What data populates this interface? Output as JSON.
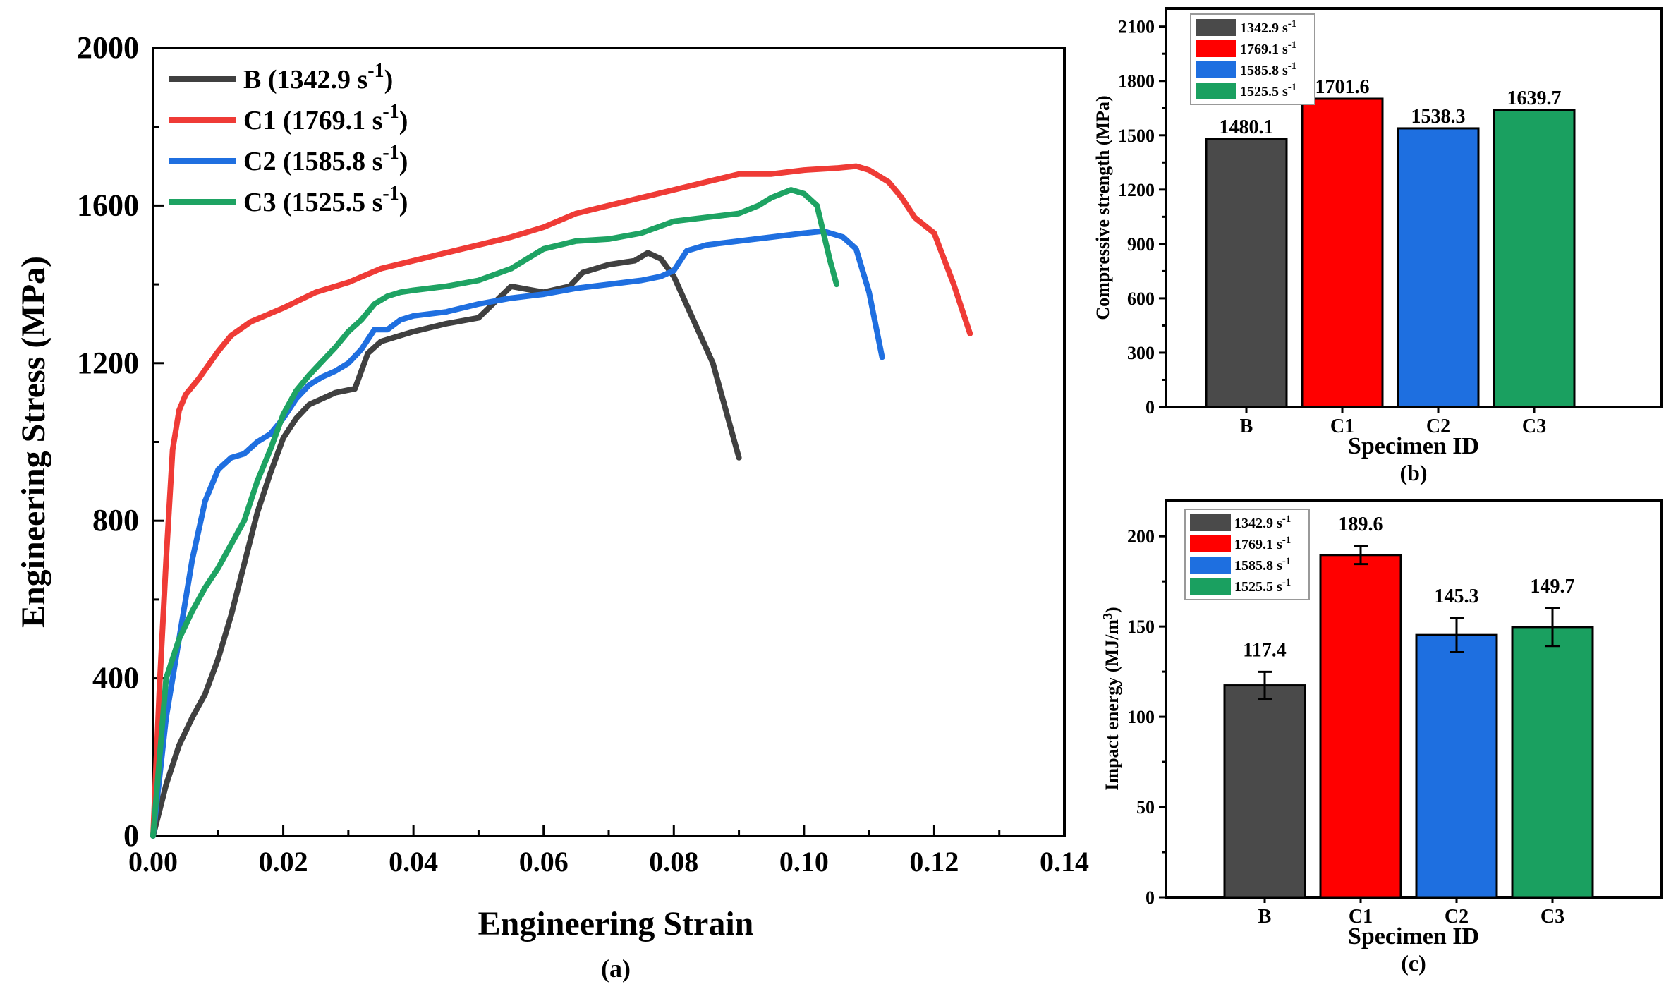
{
  "chart_data": [
    {
      "id": "a",
      "type": "line",
      "panel_label": "(a)",
      "xlabel": "Engineering Strain",
      "ylabel": "Engineering Stress (MPa)",
      "xlim": [
        0,
        0.14
      ],
      "ylim": [
        0,
        2000
      ],
      "xticks": [
        0,
        0.02,
        0.04,
        0.06,
        0.08,
        0.1,
        0.12,
        0.14
      ],
      "xtick_labels": [
        "0.00",
        "0.02",
        "0.04",
        "0.06",
        "0.08",
        "0.10",
        "0.12",
        "0.14"
      ],
      "yticks": [
        0,
        400,
        800,
        1200,
        1600,
        2000
      ],
      "ytick_labels": [
        "0",
        "400",
        "800",
        "1200",
        "1600",
        "2000"
      ],
      "legend_position": "top-left",
      "series": [
        {
          "name": "B",
          "rate": "1342.9",
          "unit": "s",
          "exponent": "-1",
          "color": "#404040",
          "points": [
            [
              0,
              0
            ],
            [
              0.002,
              130
            ],
            [
              0.004,
              230
            ],
            [
              0.006,
              300
            ],
            [
              0.008,
              360
            ],
            [
              0.01,
              450
            ],
            [
              0.012,
              560
            ],
            [
              0.014,
              690
            ],
            [
              0.016,
              820
            ],
            [
              0.018,
              920
            ],
            [
              0.02,
              1010
            ],
            [
              0.022,
              1060
            ],
            [
              0.024,
              1095
            ],
            [
              0.026,
              1110
            ],
            [
              0.028,
              1125
            ],
            [
              0.031,
              1135
            ],
            [
              0.033,
              1225
            ],
            [
              0.035,
              1255
            ],
            [
              0.04,
              1280
            ],
            [
              0.045,
              1300
            ],
            [
              0.05,
              1315
            ],
            [
              0.055,
              1395
            ],
            [
              0.06,
              1380
            ],
            [
              0.064,
              1395
            ],
            [
              0.066,
              1430
            ],
            [
              0.07,
              1450
            ],
            [
              0.074,
              1460
            ],
            [
              0.076,
              1480
            ],
            [
              0.078,
              1465
            ],
            [
              0.08,
              1420
            ],
            [
              0.083,
              1310
            ],
            [
              0.086,
              1200
            ],
            [
              0.088,
              1080
            ],
            [
              0.09,
              960
            ]
          ]
        },
        {
          "name": "C1",
          "rate": "1769.1",
          "unit": "s",
          "exponent": "-1",
          "color": "#ef3b36",
          "points": [
            [
              0,
              0
            ],
            [
              0.001,
              380
            ],
            [
              0.002,
              700
            ],
            [
              0.003,
              980
            ],
            [
              0.004,
              1080
            ],
            [
              0.005,
              1120
            ],
            [
              0.007,
              1160
            ],
            [
              0.01,
              1230
            ],
            [
              0.012,
              1270
            ],
            [
              0.015,
              1305
            ],
            [
              0.02,
              1340
            ],
            [
              0.025,
              1380
            ],
            [
              0.03,
              1405
            ],
            [
              0.035,
              1440
            ],
            [
              0.04,
              1460
            ],
            [
              0.045,
              1480
            ],
            [
              0.05,
              1500
            ],
            [
              0.055,
              1520
            ],
            [
              0.06,
              1545
            ],
            [
              0.065,
              1580
            ],
            [
              0.07,
              1600
            ],
            [
              0.075,
              1620
            ],
            [
              0.08,
              1640
            ],
            [
              0.085,
              1660
            ],
            [
              0.09,
              1680
            ],
            [
              0.095,
              1680
            ],
            [
              0.1,
              1690
            ],
            [
              0.105,
              1695
            ],
            [
              0.108,
              1700
            ],
            [
              0.11,
              1690
            ],
            [
              0.113,
              1660
            ],
            [
              0.115,
              1620
            ],
            [
              0.117,
              1570
            ],
            [
              0.12,
              1530
            ],
            [
              0.123,
              1400
            ],
            [
              0.1255,
              1275
            ]
          ]
        },
        {
          "name": "C2",
          "rate": "1585.8",
          "unit": "s",
          "exponent": "-1",
          "color": "#1f6fe0",
          "points": [
            [
              0,
              0
            ],
            [
              0.002,
              300
            ],
            [
              0.004,
              500
            ],
            [
              0.006,
              700
            ],
            [
              0.008,
              850
            ],
            [
              0.01,
              930
            ],
            [
              0.012,
              960
            ],
            [
              0.014,
              970
            ],
            [
              0.016,
              1000
            ],
            [
              0.018,
              1020
            ],
            [
              0.02,
              1060
            ],
            [
              0.022,
              1110
            ],
            [
              0.024,
              1145
            ],
            [
              0.026,
              1165
            ],
            [
              0.028,
              1180
            ],
            [
              0.03,
              1200
            ],
            [
              0.032,
              1235
            ],
            [
              0.034,
              1285
            ],
            [
              0.036,
              1285
            ],
            [
              0.038,
              1310
            ],
            [
              0.04,
              1320
            ],
            [
              0.045,
              1330
            ],
            [
              0.05,
              1350
            ],
            [
              0.055,
              1365
            ],
            [
              0.06,
              1375
            ],
            [
              0.065,
              1390
            ],
            [
              0.07,
              1400
            ],
            [
              0.075,
              1410
            ],
            [
              0.078,
              1420
            ],
            [
              0.08,
              1435
            ],
            [
              0.082,
              1485
            ],
            [
              0.085,
              1500
            ],
            [
              0.09,
              1510
            ],
            [
              0.095,
              1520
            ],
            [
              0.1,
              1530
            ],
            [
              0.103,
              1535
            ],
            [
              0.106,
              1520
            ],
            [
              0.108,
              1490
            ],
            [
              0.11,
              1380
            ],
            [
              0.112,
              1215
            ]
          ]
        },
        {
          "name": "C3",
          "rate": "1525.5",
          "unit": "s",
          "exponent": "-1",
          "color": "#1ea363",
          "points": [
            [
              0,
              0
            ],
            [
              0.002,
              400
            ],
            [
              0.004,
              500
            ],
            [
              0.006,
              570
            ],
            [
              0.008,
              630
            ],
            [
              0.01,
              680
            ],
            [
              0.012,
              740
            ],
            [
              0.014,
              800
            ],
            [
              0.016,
              900
            ],
            [
              0.018,
              980
            ],
            [
              0.02,
              1070
            ],
            [
              0.022,
              1130
            ],
            [
              0.024,
              1170
            ],
            [
              0.026,
              1205
            ],
            [
              0.028,
              1240
            ],
            [
              0.03,
              1280
            ],
            [
              0.032,
              1310
            ],
            [
              0.034,
              1350
            ],
            [
              0.036,
              1370
            ],
            [
              0.038,
              1380
            ],
            [
              0.04,
              1385
            ],
            [
              0.045,
              1395
            ],
            [
              0.05,
              1410
            ],
            [
              0.055,
              1440
            ],
            [
              0.06,
              1490
            ],
            [
              0.065,
              1510
            ],
            [
              0.07,
              1515
            ],
            [
              0.075,
              1530
            ],
            [
              0.08,
              1560
            ],
            [
              0.085,
              1570
            ],
            [
              0.09,
              1580
            ],
            [
              0.093,
              1600
            ],
            [
              0.095,
              1620
            ],
            [
              0.098,
              1640
            ],
            [
              0.1,
              1630
            ],
            [
              0.102,
              1600
            ],
            [
              0.103,
              1530
            ],
            [
              0.104,
              1460
            ],
            [
              0.105,
              1400
            ]
          ]
        }
      ]
    },
    {
      "id": "b",
      "type": "bar",
      "panel_label": "(b)",
      "xlabel": "Specimen ID",
      "ylabel": "Compressive strength (MPa)",
      "categories": [
        "B",
        "C1",
        "C2",
        "C3"
      ],
      "values": [
        1480.1,
        1701.6,
        1538.3,
        1639.7
      ],
      "value_labels": [
        "1480.1",
        "1701.6",
        "1538.3",
        "1639.7"
      ],
      "ylim": [
        0,
        2200
      ],
      "yticks": [
        0,
        300,
        600,
        900,
        1200,
        1500,
        1800,
        2100
      ],
      "ytick_labels": [
        "0",
        "300",
        "600",
        "900",
        "1200",
        "1500",
        "1800",
        "2100"
      ],
      "colors": [
        "#4a4a4a",
        "#ff0000",
        "#1e6fe0",
        "#1aa060"
      ],
      "legend_position": "top-left",
      "legend": [
        {
          "rate": "1342.9",
          "unit": "s",
          "exponent": "-1"
        },
        {
          "rate": "1769.1",
          "unit": "s",
          "exponent": "-1"
        },
        {
          "rate": "1585.8",
          "unit": "s",
          "exponent": "-1"
        },
        {
          "rate": "1525.5",
          "unit": "s",
          "exponent": "-1"
        }
      ]
    },
    {
      "id": "c",
      "type": "bar",
      "panel_label": "(c)",
      "xlabel": "Specimen ID",
      "ylabel": "Impact energy (MJ/m",
      "ylabel_exponent": "3",
      "ylabel_close": ")",
      "categories": [
        "B",
        "C1",
        "C2",
        "C3"
      ],
      "values": [
        117.4,
        189.6,
        145.3,
        149.7
      ],
      "errors": [
        7.5,
        5.0,
        9.5,
        10.5
      ],
      "value_labels": [
        "117.4",
        "189.6",
        "145.3",
        "149.7"
      ],
      "ylim": [
        0,
        220
      ],
      "yticks": [
        0,
        50,
        100,
        150,
        200
      ],
      "ytick_labels": [
        "0",
        "50",
        "100",
        "150",
        "200"
      ],
      "colors": [
        "#4a4a4a",
        "#ff0000",
        "#1e6fe0",
        "#1aa060"
      ],
      "legend_position": "top-left",
      "legend": [
        {
          "rate": "1342.9",
          "unit": "s",
          "exponent": "-1"
        },
        {
          "rate": "1769.1",
          "unit": "s",
          "exponent": "-1"
        },
        {
          "rate": "1585.8",
          "unit": "s",
          "exponent": "-1"
        },
        {
          "rate": "1525.5",
          "unit": "s",
          "exponent": "-1"
        }
      ]
    }
  ]
}
